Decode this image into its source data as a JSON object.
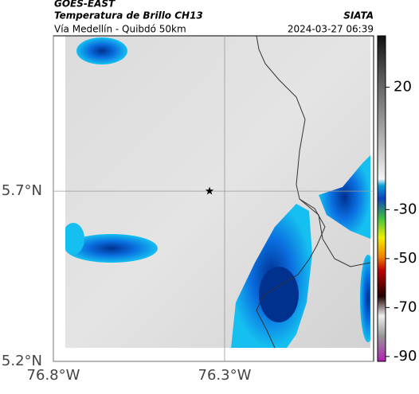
{
  "header": {
    "satellite": "GOES-EAST",
    "product": "Temperatura de Brillo CH13",
    "source": "SIATA",
    "route": "Vía Medellín - Quibdó 50km",
    "datetime": "2024-03-27 06:39"
  },
  "map": {
    "xlim": [
      -76.8,
      -75.865
    ],
    "ylim": [
      5.2,
      6.156
    ],
    "xticks": [
      {
        "value": -76.8,
        "label": "76.8°W"
      },
      {
        "value": -76.3,
        "label": "76.3°W"
      }
    ],
    "yticks": [
      {
        "value": 5.7,
        "label": "5.7°N"
      },
      {
        "value": 5.2,
        "label": "5.2°N"
      }
    ],
    "grid": true,
    "marker": {
      "lon": -76.344,
      "lat": 5.7
    }
  },
  "colorbar": {
    "clim": [
      -92,
      41
    ],
    "ticks": [
      20,
      -30,
      -50,
      -70,
      -90
    ]
  }
}
